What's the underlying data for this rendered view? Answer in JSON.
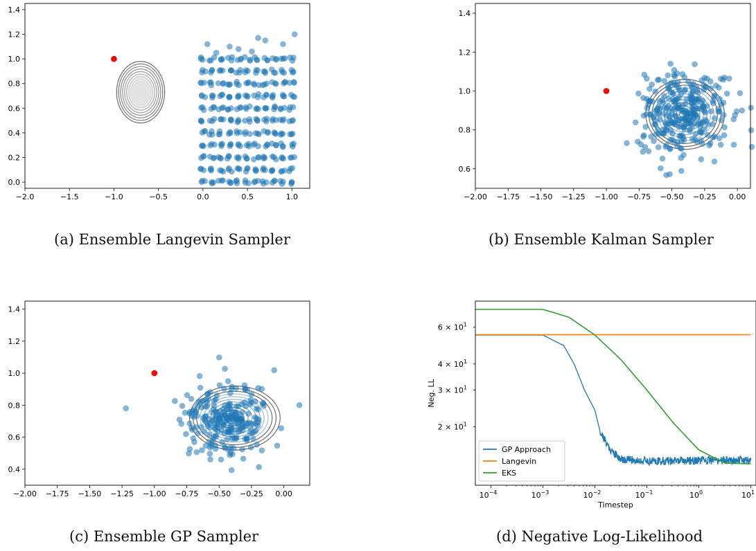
{
  "captions": {
    "a": "(a) Ensemble Langevin Sampler",
    "b": "(b) Ensemble Kalman Sampler",
    "c": "(c) Ensemble GP Sampler",
    "d": "(d) Negative Log-Likelihood"
  },
  "colors": {
    "points": "#1f77b4",
    "marker": "#ff0000",
    "contour": "#6e6e6e",
    "gp": "#1f77b4",
    "langevin": "#ff7f0e",
    "eks": "#2ca02c"
  },
  "chart_data": [
    {
      "type": "scatter",
      "id": "a",
      "xlim": [
        -2.0,
        1.2
      ],
      "ylim": [
        -0.05,
        1.45
      ],
      "xticks": [
        "−2.0",
        "−1.5",
        "−1.0",
        "−0.5",
        "0.0",
        "0.5",
        "1.0"
      ],
      "xtick_values": [
        -2.0,
        -1.5,
        -1.0,
        -0.5,
        0.0,
        0.5,
        1.0
      ],
      "yticks": [
        "0.0",
        "0.2",
        "0.4",
        "0.6",
        "0.8",
        "1.0",
        "1.2",
        "1.4"
      ],
      "ytick_values": [
        0.0,
        0.2,
        0.4,
        0.6,
        0.8,
        1.0,
        1.2,
        1.4
      ],
      "marker_point": [
        -1.0,
        1.0
      ],
      "contour": {
        "center": [
          -0.7,
          0.73
        ],
        "rx": 0.27,
        "ry": 0.25,
        "levels": 12,
        "fill": "gray"
      },
      "ensemble": {
        "shape": "grid",
        "x_range": [
          0.0,
          1.0
        ],
        "y_range": [
          0.0,
          1.0
        ],
        "cols": 11,
        "rows": 11,
        "extra_top": [
          [
            0.05,
            1.12
          ],
          [
            0.3,
            1.1
          ],
          [
            0.4,
            1.08
          ],
          [
            0.62,
            1.17
          ],
          [
            0.7,
            1.15
          ],
          [
            0.9,
            1.12
          ],
          [
            1.03,
            1.2
          ],
          [
            0.15,
            1.05
          ],
          [
            0.55,
            1.06
          ]
        ]
      }
    },
    {
      "type": "scatter",
      "id": "b",
      "xlim": [
        -2.0,
        0.1
      ],
      "ylim": [
        0.5,
        1.45
      ],
      "xticks": [
        "−2.00",
        "−1.75",
        "−1.50",
        "−1.25",
        "−1.00",
        "−0.75",
        "−0.50",
        "−0.25",
        "0.00"
      ],
      "xtick_values": [
        -2.0,
        -1.75,
        -1.5,
        -1.25,
        -1.0,
        -0.75,
        -0.5,
        -0.25,
        0.0
      ],
      "yticks": [
        "0.6",
        "0.8",
        "1.0",
        "1.2",
        "1.4"
      ],
      "ytick_values": [
        0.6,
        0.8,
        1.0,
        1.2,
        1.4
      ],
      "marker_point": [
        -1.0,
        1.0
      ],
      "contour": {
        "center": [
          -0.42,
          0.88
        ],
        "rx": 0.3,
        "ry": 0.18,
        "levels": 12,
        "fill": "blue"
      },
      "ensemble": {
        "shape": "cloud",
        "center": [
          -0.42,
          0.88
        ],
        "sx": 0.17,
        "sy": 0.11,
        "n": 300,
        "seed": 7
      }
    },
    {
      "type": "scatter",
      "id": "c",
      "xlim": [
        -2.0,
        0.2
      ],
      "ylim": [
        0.3,
        1.45
      ],
      "xticks": [
        "−2.00",
        "−1.75",
        "−1.50",
        "−1.25",
        "−1.00",
        "−0.75",
        "−0.50",
        "−0.25",
        "0.00"
      ],
      "xtick_values": [
        -2.0,
        -1.75,
        -1.5,
        -1.25,
        -1.0,
        -0.75,
        -0.5,
        -0.25,
        0.0
      ],
      "yticks": [
        "0.4",
        "0.6",
        "0.8",
        "1.0",
        "1.2",
        "1.4"
      ],
      "ytick_values": [
        0.4,
        0.6,
        0.8,
        1.0,
        1.2,
        1.4
      ],
      "marker_point": [
        -1.0,
        1.0
      ],
      "contour": {
        "center": [
          -0.4,
          0.72
        ],
        "rx": 0.35,
        "ry": 0.2,
        "levels": 12,
        "fill": "blue"
      },
      "ensemble": {
        "shape": "cloud",
        "center": [
          -0.45,
          0.7
        ],
        "sx": 0.17,
        "sy": 0.12,
        "n": 240,
        "seed": 13,
        "outliers": [
          [
            -1.22,
            0.78
          ],
          [
            0.12,
            0.8
          ]
        ]
      }
    },
    {
      "type": "line",
      "id": "d",
      "xscale": "log",
      "yscale": "log",
      "xlim": [
        -4.3,
        1.1
      ],
      "ylim": [
        10.5,
        80
      ],
      "xlabel": "Timestep",
      "ylabel": "Neg. LL",
      "xticks": [
        "10",
        "10",
        "10",
        "10",
        "10",
        "10"
      ],
      "xtick_exponents": [
        "−4",
        "−3",
        "−2",
        "−1",
        "0",
        "1"
      ],
      "xtick_log_values": [
        -4,
        -3,
        -2,
        -1,
        0,
        1
      ],
      "yticks": [
        "2 × 10",
        "3 × 10",
        "4 × 10",
        "6 × 10"
      ],
      "ytick_exponents": [
        "1",
        "1",
        "1",
        "1"
      ],
      "ytick_values": [
        20,
        30,
        40,
        60
      ],
      "legend": {
        "position": "lower-left",
        "entries": [
          "GP Approach",
          "Langevin",
          "EKS"
        ]
      },
      "series": [
        {
          "name": "GP Approach",
          "log_t": [
            -4.3,
            -3.0,
            -2.6,
            -2.4,
            -2.2,
            -2.0,
            -1.9,
            -1.7,
            -1.5,
            -1.0,
            0.0,
            1.0
          ],
          "values": [
            55,
            55,
            49,
            40,
            30,
            24,
            19,
            15.5,
            14,
            13.7,
            13.8,
            13.9
          ],
          "noisy_from": -1.9
        },
        {
          "name": "Langevin",
          "log_t": [
            -4.3,
            1.0
          ],
          "values": [
            55.2,
            55.2
          ]
        },
        {
          "name": "EKS",
          "log_t": [
            -4.3,
            -3.0,
            -2.5,
            -2.0,
            -1.5,
            -1.0,
            -0.5,
            0.0,
            0.5,
            1.0
          ],
          "values": [
            73,
            73,
            67,
            55,
            42,
            30,
            21,
            15.5,
            13.4,
            13.3
          ]
        }
      ]
    }
  ]
}
